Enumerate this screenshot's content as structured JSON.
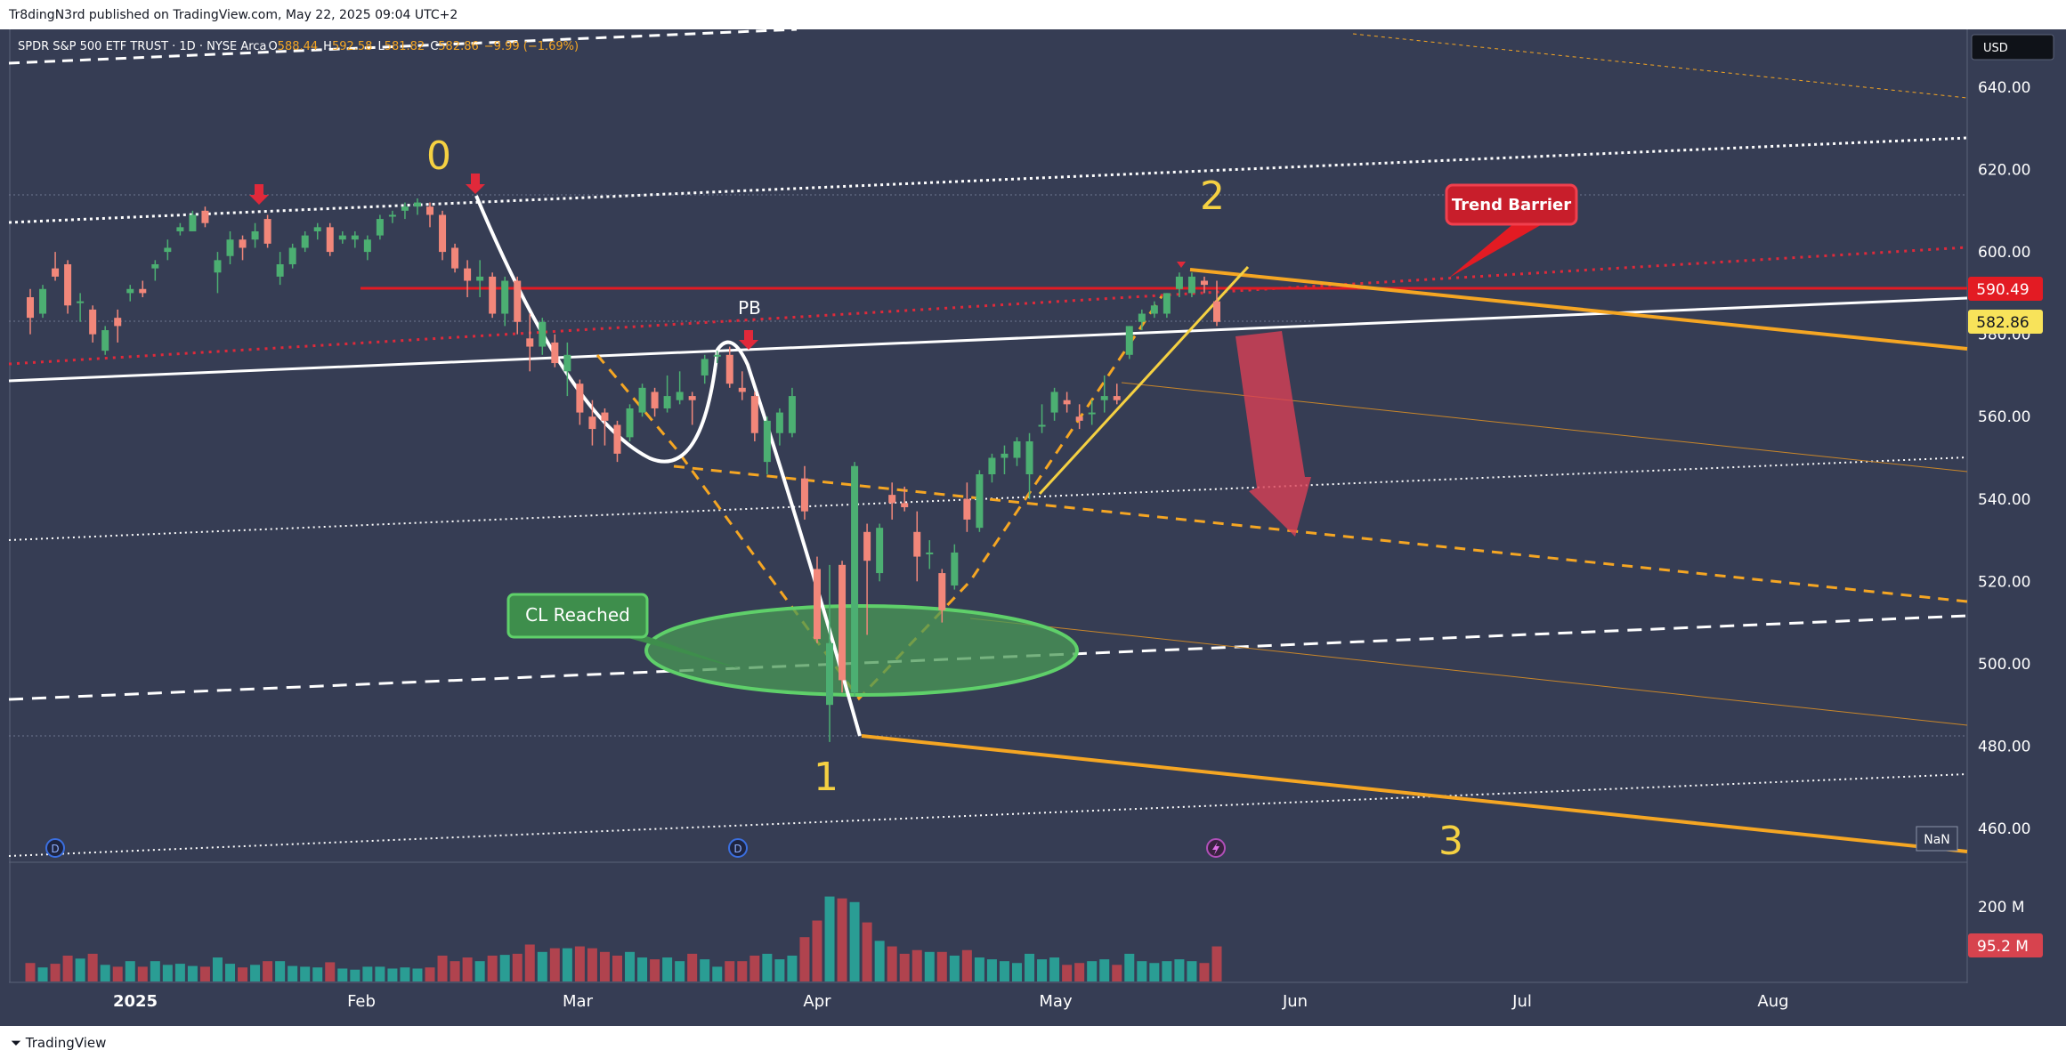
{
  "header": {
    "published_line": "Tr8dingN3rd published on TradingView.com, May 22, 2025 09:04 UTC+2"
  },
  "footer": {
    "brand": "TradingView"
  },
  "symbol": {
    "title": "SPDR S&P 500 ETF TRUST · 1D · NYSE Arca",
    "o_label": "O",
    "o_value": "588.44",
    "h_label": "H",
    "h_value": "592.58",
    "l_label": "L",
    "l_value": "581.82",
    "c_label": "C",
    "c_value": "582.86",
    "change": "−9.99 (−1.69%)"
  },
  "currency": "USD",
  "price_axis": {
    "ticks": [
      "640.00",
      "620.00",
      "600.00",
      "580.00",
      "560.00",
      "540.00",
      "520.00",
      "500.00",
      "480.00",
      "460.00"
    ],
    "badge_red": "590.49",
    "badge_yellow": "582.86",
    "volume_tick": "200 M",
    "volume_badge": "95.2 M"
  },
  "time_axis": [
    "2025",
    "Feb",
    "Mar",
    "Apr",
    "May",
    "Jun",
    "Jul",
    "Aug"
  ],
  "annotations": {
    "wave0": "0",
    "wave1": "1",
    "wave2": "2",
    "wave3": "3",
    "pb": "PB",
    "cl_reached": "CL Reached",
    "trend_barrier": "Trend Barrier",
    "nan": "NaN",
    "marker_d": "D"
  },
  "colors": {
    "background": "#363d54",
    "up": "#4caf72",
    "down": "#f2877a",
    "volume_up": "#2a9d94",
    "volume_down": "#b0434e",
    "wave_yellow": "#f5d142",
    "orange": "#f5a623",
    "red_line": "#e31b23",
    "white": "#ffffff"
  },
  "chart_data": {
    "type": "candlestick",
    "ylim": [
      452,
      652
    ],
    "volume_ylim": [
      0,
      240
    ],
    "candles": [
      {
        "d": "2025-01-02",
        "o": 589,
        "h": 591,
        "l": 580,
        "c": 584,
        "v": 50
      },
      {
        "d": "2025-01-03",
        "o": 585,
        "h": 592,
        "l": 584,
        "c": 591,
        "v": 38
      },
      {
        "d": "2025-01-06",
        "o": 596,
        "h": 600,
        "l": 593,
        "c": 594,
        "v": 48
      },
      {
        "d": "2025-01-07",
        "o": 597,
        "h": 598,
        "l": 585,
        "c": 587,
        "v": 70
      },
      {
        "d": "2025-01-08",
        "o": 588,
        "h": 590,
        "l": 583,
        "c": 588,
        "v": 62
      },
      {
        "d": "2025-01-10",
        "o": 586,
        "h": 587,
        "l": 578,
        "c": 580,
        "v": 75
      },
      {
        "d": "2025-01-13",
        "o": 576,
        "h": 582,
        "l": 575,
        "c": 581,
        "v": 45
      },
      {
        "d": "2025-01-14",
        "o": 584,
        "h": 586,
        "l": 578,
        "c": 582,
        "v": 40
      },
      {
        "d": "2025-01-15",
        "o": 590,
        "h": 592,
        "l": 588,
        "c": 591,
        "v": 55
      },
      {
        "d": "2025-01-16",
        "o": 591,
        "h": 593,
        "l": 589,
        "c": 590,
        "v": 40
      },
      {
        "d": "2025-01-17",
        "o": 596,
        "h": 598,
        "l": 593,
        "c": 597,
        "v": 55
      },
      {
        "d": "2025-01-21",
        "o": 600,
        "h": 603,
        "l": 598,
        "c": 601,
        "v": 45
      },
      {
        "d": "2025-01-22",
        "o": 605,
        "h": 607,
        "l": 604,
        "c": 606,
        "v": 48
      },
      {
        "d": "2025-01-23",
        "o": 605,
        "h": 610,
        "l": 605,
        "c": 609,
        "v": 42
      },
      {
        "d": "2025-01-24",
        "o": 610,
        "h": 611,
        "l": 606,
        "c": 607,
        "v": 40
      },
      {
        "d": "2025-01-27",
        "o": 595,
        "h": 600,
        "l": 590,
        "c": 598,
        "v": 65
      },
      {
        "d": "2025-01-28",
        "o": 599,
        "h": 605,
        "l": 597,
        "c": 603,
        "v": 48
      },
      {
        "d": "2025-01-29",
        "o": 603,
        "h": 604,
        "l": 598,
        "c": 601,
        "v": 38
      },
      {
        "d": "2025-01-30",
        "o": 603,
        "h": 607,
        "l": 601,
        "c": 605,
        "v": 45
      },
      {
        "d": "2025-01-31",
        "o": 608,
        "h": 609,
        "l": 601,
        "c": 602,
        "v": 55
      },
      {
        "d": "2025-02-03",
        "o": 594,
        "h": 600,
        "l": 592,
        "c": 597,
        "v": 55
      },
      {
        "d": "2025-02-04",
        "o": 597,
        "h": 602,
        "l": 596,
        "c": 601,
        "v": 42
      },
      {
        "d": "2025-02-05",
        "o": 601,
        "h": 605,
        "l": 600,
        "c": 604,
        "v": 40
      },
      {
        "d": "2025-02-06",
        "o": 605,
        "h": 607,
        "l": 603,
        "c": 606,
        "v": 38
      },
      {
        "d": "2025-02-07",
        "o": 606,
        "h": 607,
        "l": 599,
        "c": 600,
        "v": 52
      },
      {
        "d": "2025-02-10",
        "o": 603,
        "h": 605,
        "l": 602,
        "c": 604,
        "v": 35
      },
      {
        "d": "2025-02-11",
        "o": 603,
        "h": 605,
        "l": 601,
        "c": 604,
        "v": 32
      },
      {
        "d": "2025-02-12",
        "o": 600,
        "h": 604,
        "l": 598,
        "c": 603,
        "v": 40
      },
      {
        "d": "2025-02-13",
        "o": 604,
        "h": 609,
        "l": 603,
        "c": 608,
        "v": 40
      },
      {
        "d": "2025-02-14",
        "o": 609,
        "h": 610,
        "l": 607,
        "c": 609,
        "v": 35
      },
      {
        "d": "2025-02-18",
        "o": 610,
        "h": 612,
        "l": 608,
        "c": 611,
        "v": 38
      },
      {
        "d": "2025-02-19",
        "o": 611,
        "h": 613,
        "l": 609,
        "c": 612,
        "v": 35
      },
      {
        "d": "2025-02-20",
        "o": 611,
        "h": 612,
        "l": 606,
        "c": 609,
        "v": 38
      },
      {
        "d": "2025-02-21",
        "o": 609,
        "h": 610,
        "l": 598,
        "c": 600,
        "v": 70
      },
      {
        "d": "2025-02-24",
        "o": 601,
        "h": 602,
        "l": 595,
        "c": 596,
        "v": 55
      },
      {
        "d": "2025-02-25",
        "o": 596,
        "h": 598,
        "l": 589,
        "c": 593,
        "v": 65
      },
      {
        "d": "2025-02-26",
        "o": 593,
        "h": 598,
        "l": 589,
        "c": 594,
        "v": 55
      },
      {
        "d": "2025-02-27",
        "o": 594,
        "h": 595,
        "l": 584,
        "c": 585,
        "v": 70
      },
      {
        "d": "2025-02-28",
        "o": 585,
        "h": 594,
        "l": 582,
        "c": 593,
        "v": 72
      },
      {
        "d": "2025-03-03",
        "o": 593,
        "h": 594,
        "l": 580,
        "c": 583,
        "v": 75
      },
      {
        "d": "2025-03-04",
        "o": 579,
        "h": 585,
        "l": 571,
        "c": 577,
        "v": 100
      },
      {
        "d": "2025-03-05",
        "o": 577,
        "h": 584,
        "l": 575,
        "c": 583,
        "v": 80
      },
      {
        "d": "2025-03-06",
        "o": 578,
        "h": 580,
        "l": 572,
        "c": 573,
        "v": 90
      },
      {
        "d": "2025-03-07",
        "o": 571,
        "h": 578,
        "l": 565,
        "c": 575,
        "v": 90
      },
      {
        "d": "2025-03-10",
        "o": 568,
        "h": 569,
        "l": 558,
        "c": 561,
        "v": 95
      },
      {
        "d": "2025-03-11",
        "o": 560,
        "h": 564,
        "l": 553,
        "c": 557,
        "v": 90
      },
      {
        "d": "2025-03-12",
        "o": 561,
        "h": 562,
        "l": 553,
        "c": 559,
        "v": 80
      },
      {
        "d": "2025-03-13",
        "o": 558,
        "h": 559,
        "l": 549,
        "c": 551,
        "v": 70
      },
      {
        "d": "2025-03-14",
        "o": 555,
        "h": 563,
        "l": 554,
        "c": 562,
        "v": 80
      },
      {
        "d": "2025-03-17",
        "o": 561,
        "h": 568,
        "l": 560,
        "c": 567,
        "v": 65
      },
      {
        "d": "2025-03-18",
        "o": 566,
        "h": 567,
        "l": 560,
        "c": 562,
        "v": 60
      },
      {
        "d": "2025-03-19",
        "o": 562,
        "h": 570,
        "l": 561,
        "c": 565,
        "v": 65
      },
      {
        "d": "2025-03-20",
        "o": 564,
        "h": 571,
        "l": 563,
        "c": 566,
        "v": 55
      },
      {
        "d": "2025-03-21",
        "o": 565,
        "h": 566,
        "l": 558,
        "c": 564,
        "v": 75
      },
      {
        "d": "2025-03-24",
        "o": 570,
        "h": 575,
        "l": 568,
        "c": 574,
        "v": 60
      },
      {
        "d": "2025-03-25",
        "o": 575,
        "h": 576,
        "l": 573,
        "c": 575,
        "v": 40
      },
      {
        "d": "2025-03-26",
        "o": 575,
        "h": 577,
        "l": 567,
        "c": 568,
        "v": 55
      },
      {
        "d": "2025-03-27",
        "o": 567,
        "h": 571,
        "l": 564,
        "c": 566,
        "v": 55
      },
      {
        "d": "2025-03-28",
        "o": 565,
        "h": 566,
        "l": 554,
        "c": 556,
        "v": 70
      },
      {
        "d": "2025-03-31",
        "o": 549,
        "h": 560,
        "l": 546,
        "c": 559,
        "v": 75
      },
      {
        "d": "2025-04-01",
        "o": 556,
        "h": 562,
        "l": 553,
        "c": 561,
        "v": 60
      },
      {
        "d": "2025-04-02",
        "o": 556,
        "h": 567,
        "l": 555,
        "c": 565,
        "v": 70
      },
      {
        "d": "2025-04-03",
        "o": 545,
        "h": 548,
        "l": 535,
        "c": 537,
        "v": 120
      },
      {
        "d": "2025-04-04",
        "o": 523,
        "h": 526,
        "l": 505,
        "c": 506,
        "v": 165
      },
      {
        "d": "2025-04-07",
        "o": 490,
        "h": 524,
        "l": 481,
        "c": 505,
        "v": 230
      },
      {
        "d": "2025-04-08",
        "o": 524,
        "h": 525,
        "l": 493,
        "c": 496,
        "v": 225
      },
      {
        "d": "2025-04-09",
        "o": 493,
        "h": 549,
        "l": 492,
        "c": 548,
        "v": 215
      },
      {
        "d": "2025-04-10",
        "o": 532,
        "h": 534,
        "l": 507,
        "c": 525,
        "v": 160
      },
      {
        "d": "2025-04-11",
        "o": 522,
        "h": 534,
        "l": 520,
        "c": 533,
        "v": 110
      },
      {
        "d": "2025-04-14",
        "o": 541,
        "h": 544,
        "l": 535,
        "c": 539,
        "v": 95
      },
      {
        "d": "2025-04-15",
        "o": 539,
        "h": 543,
        "l": 537,
        "c": 538,
        "v": 75
      },
      {
        "d": "2025-04-16",
        "o": 532,
        "h": 537,
        "l": 520,
        "c": 526,
        "v": 85
      },
      {
        "d": "2025-04-17",
        "o": 527,
        "h": 530,
        "l": 523,
        "c": 527,
        "v": 80
      },
      {
        "d": "2025-04-21",
        "o": 522,
        "h": 523,
        "l": 510,
        "c": 513,
        "v": 80
      },
      {
        "d": "2025-04-22",
        "o": 519,
        "h": 529,
        "l": 518,
        "c": 527,
        "v": 70
      },
      {
        "d": "2025-04-23",
        "o": 540,
        "h": 544,
        "l": 532,
        "c": 535,
        "v": 85
      },
      {
        "d": "2025-04-24",
        "o": 533,
        "h": 547,
        "l": 532,
        "c": 546,
        "v": 65
      },
      {
        "d": "2025-04-25",
        "o": 546,
        "h": 551,
        "l": 544,
        "c": 550,
        "v": 60
      },
      {
        "d": "2025-04-28",
        "o": 550,
        "h": 553,
        "l": 546,
        "c": 551,
        "v": 55
      },
      {
        "d": "2025-04-29",
        "o": 550,
        "h": 555,
        "l": 548,
        "c": 554,
        "v": 50
      },
      {
        "d": "2025-04-30",
        "o": 546,
        "h": 556,
        "l": 540,
        "c": 554,
        "v": 75
      },
      {
        "d": "2025-05-01",
        "o": 558,
        "h": 563,
        "l": 556,
        "c": 558,
        "v": 60
      },
      {
        "d": "2025-05-02",
        "o": 561,
        "h": 567,
        "l": 559,
        "c": 566,
        "v": 65
      },
      {
        "d": "2025-05-05",
        "o": 564,
        "h": 566,
        "l": 561,
        "c": 563,
        "v": 45
      },
      {
        "d": "2025-05-06",
        "o": 560,
        "h": 563,
        "l": 557,
        "c": 559,
        "v": 50
      },
      {
        "d": "2025-05-07",
        "o": 561,
        "h": 564,
        "l": 558,
        "c": 561,
        "v": 55
      },
      {
        "d": "2025-05-08",
        "o": 564,
        "h": 570,
        "l": 561,
        "c": 565,
        "v": 60
      },
      {
        "d": "2025-05-09",
        "o": 565,
        "h": 568,
        "l": 563,
        "c": 564,
        "v": 45
      },
      {
        "d": "2025-05-12",
        "o": 575,
        "h": 582,
        "l": 574,
        "c": 582,
        "v": 75
      },
      {
        "d": "2025-05-13",
        "o": 583,
        "h": 586,
        "l": 581,
        "c": 585,
        "v": 55
      },
      {
        "d": "2025-05-14",
        "o": 585,
        "h": 588,
        "l": 584,
        "c": 587,
        "v": 50
      },
      {
        "d": "2025-05-15",
        "o": 585,
        "h": 590,
        "l": 584,
        "c": 590,
        "v": 55
      },
      {
        "d": "2025-05-16",
        "o": 591,
        "h": 595,
        "l": 589,
        "c": 594,
        "v": 60
      },
      {
        "d": "2025-05-19",
        "o": 590,
        "h": 595,
        "l": 589,
        "c": 594,
        "v": 55
      },
      {
        "d": "2025-05-20",
        "o": 593,
        "h": 594,
        "l": 590,
        "c": 592,
        "v": 50
      },
      {
        "d": "2025-05-21",
        "o": 588,
        "h": 593,
        "l": 582,
        "c": 583,
        "v": 95
      }
    ]
  }
}
